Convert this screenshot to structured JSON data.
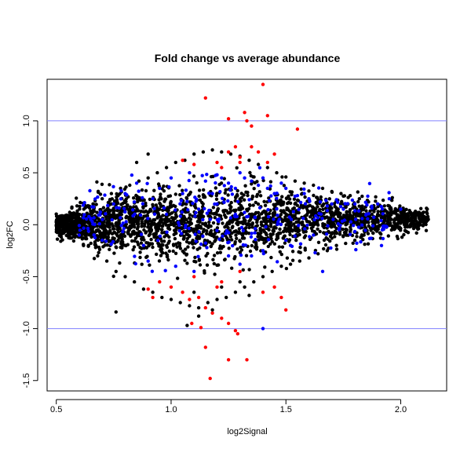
{
  "chart_data": {
    "type": "scatter",
    "title": "Fold change vs average abundance",
    "xlabel": "log2Signal",
    "ylabel": "log2FC",
    "xlim": [
      0.46,
      2.2
    ],
    "ylim": [
      -1.6,
      1.4
    ],
    "x_ticks": [
      0.5,
      1.0,
      1.5,
      2.0
    ],
    "x_tick_labels": [
      "0.5",
      "1.0",
      "1.5",
      "2.0"
    ],
    "y_ticks": [
      -1.5,
      -1.0,
      -0.5,
      0.0,
      0.5,
      1.0
    ],
    "y_tick_labels": [
      "-1.5",
      "-1.0",
      "-0.5",
      "0.0",
      "0.5",
      "1.0"
    ],
    "reference_lines": [
      1.0,
      -1.0
    ],
    "grid": false,
    "legend": "none",
    "colors": {
      "reference_line": "#8080ff",
      "series_black": "#000000",
      "series_blue": "#0000ff",
      "series_red": "#ff0000"
    },
    "series": [
      {
        "color": "#000000",
        "points": [
          [
            0.52,
            0.0
          ],
          [
            0.55,
            -0.05
          ],
          [
            0.57,
            0.08
          ],
          [
            0.6,
            -0.12
          ],
          [
            0.62,
            0.15
          ],
          [
            0.64,
            -0.2
          ],
          [
            0.66,
            0.2
          ],
          [
            0.68,
            -0.3
          ],
          [
            0.7,
            0.25
          ],
          [
            0.72,
            -0.35
          ],
          [
            0.74,
            0.3
          ],
          [
            0.76,
            -0.45
          ],
          [
            0.78,
            0.35
          ],
          [
            0.8,
            -0.5
          ],
          [
            0.82,
            0.38
          ],
          [
            0.84,
            -0.55
          ],
          [
            0.86,
            0.42
          ],
          [
            0.88,
            -0.62
          ],
          [
            0.9,
            0.45
          ],
          [
            0.92,
            -0.65
          ],
          [
            0.94,
            0.5
          ],
          [
            0.96,
            -0.7
          ],
          [
            0.98,
            0.55
          ],
          [
            1.0,
            -0.72
          ],
          [
            1.02,
            0.6
          ],
          [
            1.04,
            -0.75
          ],
          [
            1.06,
            0.62
          ],
          [
            1.08,
            -0.78
          ],
          [
            1.1,
            0.68
          ],
          [
            1.12,
            -0.8
          ],
          [
            1.14,
            0.7
          ],
          [
            1.16,
            -0.75
          ],
          [
            1.18,
            0.72
          ],
          [
            1.2,
            -0.72
          ],
          [
            1.22,
            0.7
          ],
          [
            1.24,
            -0.7
          ],
          [
            1.26,
            0.68
          ],
          [
            1.28,
            -0.65
          ],
          [
            1.3,
            0.66
          ],
          [
            1.32,
            -0.6
          ],
          [
            1.34,
            0.62
          ],
          [
            1.36,
            -0.55
          ],
          [
            1.38,
            0.58
          ],
          [
            1.4,
            -0.5
          ],
          [
            1.42,
            0.55
          ],
          [
            1.44,
            -0.45
          ],
          [
            1.46,
            0.5
          ],
          [
            1.48,
            -0.4
          ],
          [
            1.5,
            0.46
          ],
          [
            1.52,
            -0.38
          ],
          [
            1.54,
            0.42
          ],
          [
            1.56,
            -0.35
          ],
          [
            1.58,
            0.4
          ],
          [
            1.6,
            -0.32
          ],
          [
            1.62,
            0.38
          ],
          [
            1.64,
            -0.28
          ],
          [
            1.66,
            0.35
          ],
          [
            1.68,
            -0.25
          ],
          [
            1.7,
            0.32
          ],
          [
            1.72,
            -0.2
          ],
          [
            1.74,
            0.3
          ],
          [
            1.76,
            -0.18
          ],
          [
            1.78,
            0.28
          ],
          [
            1.8,
            -0.15
          ],
          [
            1.82,
            0.25
          ],
          [
            1.84,
            -0.1
          ],
          [
            1.86,
            0.22
          ],
          [
            1.88,
            -0.08
          ],
          [
            1.9,
            0.2
          ],
          [
            1.92,
            0.0
          ],
          [
            1.95,
            0.18
          ],
          [
            1.98,
            0.05
          ],
          [
            2.0,
            0.15
          ],
          [
            2.03,
            0.08
          ],
          [
            2.06,
            0.1
          ],
          [
            2.1,
            0.12
          ],
          [
            2.12,
            0.05
          ],
          [
            2.08,
            0.0
          ],
          [
            2.04,
            -0.02
          ],
          [
            1.96,
            -0.05
          ],
          [
            0.76,
            -0.84
          ],
          [
            1.07,
            -0.97
          ],
          [
            1.12,
            -0.88
          ],
          [
            1.18,
            -0.82
          ],
          [
            0.85,
            0.6
          ],
          [
            0.9,
            0.68
          ],
          [
            1.3,
            -0.55
          ],
          [
            1.22,
            -0.6
          ],
          [
            1.34,
            -0.68
          ],
          [
            1.1,
            -0.65
          ]
        ]
      },
      {
        "color": "#0000ff",
        "points": [
          [
            0.6,
            -0.1
          ],
          [
            0.65,
            0.05
          ],
          [
            0.7,
            -0.15
          ],
          [
            0.75,
            0.2
          ],
          [
            0.8,
            0.3
          ],
          [
            0.85,
            0.4
          ],
          [
            0.9,
            -0.35
          ],
          [
            0.92,
            0.25
          ],
          [
            0.95,
            0.35
          ],
          [
            1.0,
            0.45
          ],
          [
            1.02,
            -0.4
          ],
          [
            1.05,
            0.3
          ],
          [
            1.08,
            0.5
          ],
          [
            1.1,
            -0.45
          ],
          [
            1.15,
            0.42
          ],
          [
            1.18,
            0.3
          ],
          [
            1.2,
            0.48
          ],
          [
            1.22,
            0.45
          ],
          [
            1.25,
            0.4
          ],
          [
            1.28,
            0.35
          ],
          [
            1.3,
            0.5
          ],
          [
            1.32,
            0.45
          ],
          [
            1.35,
            0.42
          ],
          [
            1.38,
            0.38
          ],
          [
            1.4,
            0.45
          ],
          [
            1.42,
            0.35
          ],
          [
            1.45,
            0.3
          ],
          [
            1.48,
            0.4
          ],
          [
            1.5,
            0.35
          ],
          [
            1.52,
            -0.2
          ],
          [
            1.55,
            0.28
          ],
          [
            1.58,
            0.3
          ],
          [
            1.6,
            0.25
          ],
          [
            1.62,
            -0.1
          ],
          [
            1.65,
            0.22
          ],
          [
            1.68,
            0.18
          ],
          [
            1.7,
            0.2
          ],
          [
            1.75,
            0.15
          ],
          [
            1.8,
            0.2
          ],
          [
            1.85,
            0.1
          ],
          [
            1.9,
            0.2
          ],
          [
            1.95,
            0.25
          ],
          [
            2.0,
            0.15
          ],
          [
            1.72,
            0.24
          ],
          [
            1.25,
            -0.3
          ],
          [
            1.3,
            -0.38
          ],
          [
            1.35,
            -0.3
          ],
          [
            1.4,
            -0.25
          ],
          [
            1.2,
            0.2
          ],
          [
            1.28,
            0.1
          ],
          [
            0.88,
            -0.2
          ],
          [
            0.98,
            0.1
          ],
          [
            1.12,
            0.15
          ],
          [
            1.66,
            -0.45
          ],
          [
            1.4,
            -1.0
          ],
          [
            1.5,
            -0.15
          ]
        ]
      },
      {
        "color": "#ff0000",
        "points": [
          [
            1.15,
            1.22
          ],
          [
            1.4,
            1.35
          ],
          [
            1.33,
            1.0
          ],
          [
            1.35,
            0.95
          ],
          [
            1.25,
            1.02
          ],
          [
            1.42,
            1.05
          ],
          [
            1.32,
            1.08
          ],
          [
            1.55,
            0.92
          ],
          [
            1.2,
            0.6
          ],
          [
            1.22,
            0.55
          ],
          [
            1.25,
            0.7
          ],
          [
            1.28,
            0.75
          ],
          [
            1.3,
            0.65
          ],
          [
            1.35,
            0.75
          ],
          [
            1.38,
            0.7
          ],
          [
            1.42,
            0.6
          ],
          [
            1.45,
            0.68
          ],
          [
            1.3,
            0.6
          ],
          [
            1.1,
            0.58
          ],
          [
            1.05,
            0.62
          ],
          [
            0.95,
            -0.55
          ],
          [
            1.0,
            -0.6
          ],
          [
            1.05,
            -0.65
          ],
          [
            1.08,
            -0.72
          ],
          [
            1.12,
            -0.7
          ],
          [
            1.15,
            -0.8
          ],
          [
            1.18,
            -0.85
          ],
          [
            1.22,
            -0.9
          ],
          [
            1.25,
            -0.95
          ],
          [
            1.28,
            -1.02
          ],
          [
            1.25,
            -1.3
          ],
          [
            1.15,
            -1.18
          ],
          [
            1.17,
            -1.48
          ],
          [
            1.33,
            -1.3
          ],
          [
            1.5,
            -0.82
          ],
          [
            1.4,
            -0.65
          ],
          [
            1.45,
            -0.6
          ],
          [
            1.48,
            -0.7
          ],
          [
            1.3,
            -0.45
          ],
          [
            1.22,
            -0.55
          ],
          [
            1.2,
            -0.6
          ],
          [
            1.1,
            -0.5
          ],
          [
            0.9,
            -0.62
          ],
          [
            0.92,
            -0.7
          ],
          [
            1.29,
            -1.05
          ],
          [
            1.13,
            -0.99
          ],
          [
            1.09,
            -0.95
          ]
        ]
      }
    ]
  }
}
